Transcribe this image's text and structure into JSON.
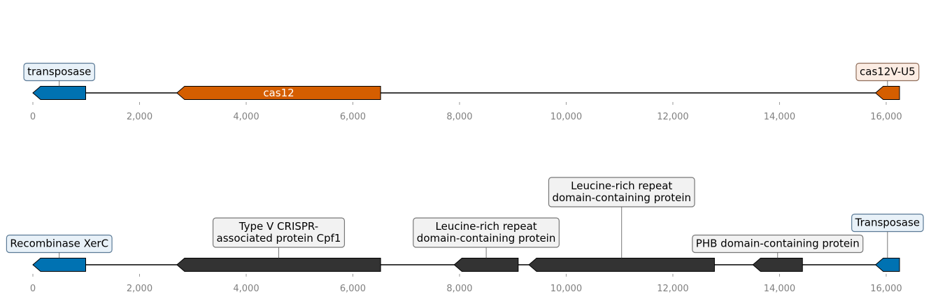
{
  "tracks": [
    {
      "axis": {
        "min": 0,
        "max": 16250,
        "ticks": [
          0,
          2000,
          4000,
          6000,
          8000,
          10000,
          12000,
          14000,
          16000
        ],
        "tick_labels": [
          "0",
          "2,000",
          "4,000",
          "6,000",
          "8,000",
          "10,000",
          "12,000",
          "14,000",
          "16,000"
        ]
      },
      "features": [
        {
          "label": "transposase",
          "start": 0,
          "end": 990,
          "strand": -1,
          "color": "#0072b2",
          "label_style": "box",
          "box_fill": "#e8f1f8",
          "box_stroke": "#5b7a96",
          "label_level": 1
        },
        {
          "label": "cas12",
          "start": 2700,
          "end": 6520,
          "strand": -1,
          "color": "#d55e00",
          "label_style": "inline",
          "text_color": "#ffffff"
        },
        {
          "label": "cas12V-U5",
          "start": 15800,
          "end": 16250,
          "strand": -1,
          "color": "#d55e00",
          "label_style": "box",
          "box_fill": "#fbece3",
          "box_stroke": "#8f6e5b",
          "label_level": 1
        }
      ]
    },
    {
      "axis": {
        "min": 0,
        "max": 16250,
        "ticks": [
          0,
          2000,
          4000,
          6000,
          8000,
          10000,
          12000,
          14000,
          16000
        ],
        "tick_labels": [
          "0",
          "2,000",
          "4,000",
          "6,000",
          "8,000",
          "10,000",
          "12,000",
          "14,000",
          "16,000"
        ]
      },
      "features": [
        {
          "label": "Recombinase XerC",
          "start": 0,
          "end": 990,
          "strand": -1,
          "color": "#0072b2",
          "label_style": "box",
          "box_fill": "#e8f1f8",
          "box_stroke": "#5b7a96",
          "label_level": 1
        },
        {
          "label": "Type V CRISPR-\nassociated protein Cpf1",
          "start": 2700,
          "end": 6520,
          "strand": -1,
          "color": "#333333",
          "label_style": "box",
          "box_fill": "#f2f2f2",
          "box_stroke": "#777777",
          "label_level": 2
        },
        {
          "label": "Leucine-rich repeat\ndomain-containing protein",
          "start": 7900,
          "end": 9100,
          "strand": -1,
          "color": "#333333",
          "label_style": "box",
          "box_fill": "#f2f2f2",
          "box_stroke": "#777777",
          "label_level": 2
        },
        {
          "label": "Leucine-rich repeat\ndomain-containing protein",
          "start": 9300,
          "end": 12780,
          "strand": -1,
          "color": "#333333",
          "label_style": "box",
          "box_fill": "#f2f2f2",
          "box_stroke": "#777777",
          "label_level": 4
        },
        {
          "label": "PHB domain-containing protein",
          "start": 13500,
          "end": 14430,
          "strand": -1,
          "color": "#333333",
          "label_style": "box",
          "box_fill": "#f2f2f2",
          "box_stroke": "#777777",
          "label_level": 1
        },
        {
          "label": "Transposase",
          "start": 15800,
          "end": 16250,
          "strand": -1,
          "color": "#0072b2",
          "label_style": "box",
          "box_fill": "#e8f1f8",
          "box_stroke": "#5b7a96",
          "label_level": 3
        }
      ]
    }
  ]
}
